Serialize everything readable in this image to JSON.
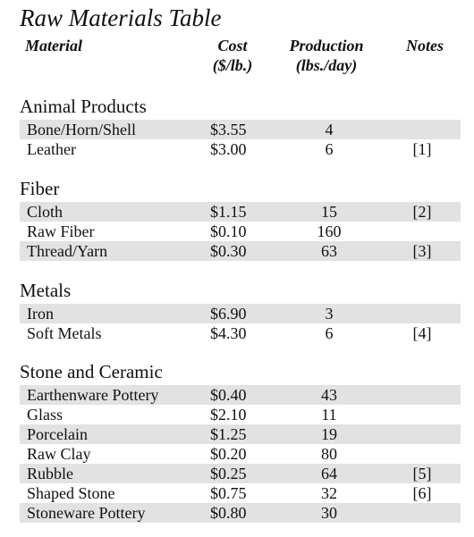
{
  "title": "Raw Materials Table",
  "headers": {
    "material": "Material",
    "cost_line1": "Cost",
    "cost_line2": "($/lb.)",
    "production_line1": "Production",
    "production_line2": "(lbs./day)",
    "notes": "Notes"
  },
  "sections": [
    {
      "name": "Animal Products",
      "rows": [
        {
          "material": "Bone/Horn/Shell",
          "cost": "$3.55",
          "production": "4",
          "note": ""
        },
        {
          "material": "Leather",
          "cost": "$3.00",
          "production": "6",
          "note": "[1]"
        }
      ]
    },
    {
      "name": "Fiber",
      "rows": [
        {
          "material": "Cloth",
          "cost": "$1.15",
          "production": "15",
          "note": "[2]"
        },
        {
          "material": "Raw Fiber",
          "cost": "$0.10",
          "production": "160",
          "note": ""
        },
        {
          "material": "Thread/Yarn",
          "cost": "$0.30",
          "production": "63",
          "note": "[3]"
        }
      ]
    },
    {
      "name": "Metals",
      "rows": [
        {
          "material": "Iron",
          "cost": "$6.90",
          "production": "3",
          "note": ""
        },
        {
          "material": "Soft Metals",
          "cost": "$4.30",
          "production": "6",
          "note": "[4]"
        }
      ]
    },
    {
      "name": "Stone and Ceramic",
      "rows": [
        {
          "material": "Earthenware Pottery",
          "cost": "$0.40",
          "production": "43",
          "note": ""
        },
        {
          "material": "Glass",
          "cost": "$2.10",
          "production": "11",
          "note": ""
        },
        {
          "material": "Porcelain",
          "cost": "$1.25",
          "production": "19",
          "note": ""
        },
        {
          "material": "Raw Clay",
          "cost": "$0.20",
          "production": "80",
          "note": ""
        },
        {
          "material": "Rubble",
          "cost": "$0.25",
          "production": "64",
          "note": "[5]"
        },
        {
          "material": "Shaped Stone",
          "cost": "$0.75",
          "production": "32",
          "note": "[6]"
        },
        {
          "material": "Stoneware Pottery",
          "cost": "$0.80",
          "production": "30",
          "note": ""
        }
      ]
    }
  ]
}
